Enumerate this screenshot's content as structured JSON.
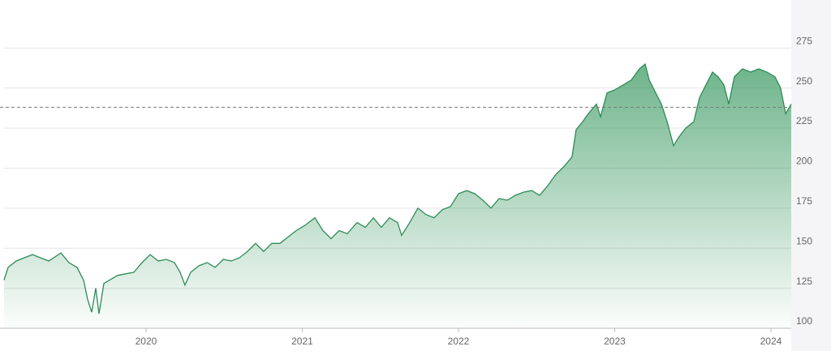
{
  "chart_data": {
    "type": "area",
    "x": [
      2019.091,
      2019.117,
      2019.169,
      2019.273,
      2019.325,
      2019.377,
      2019.455,
      2019.506,
      2019.558,
      2019.6,
      2019.626,
      2019.652,
      2019.678,
      2019.699,
      2019.73,
      2019.766,
      2019.818,
      2019.87,
      2019.922,
      2019.974,
      2020.026,
      2020.078,
      2020.13,
      2020.182,
      2020.218,
      2020.249,
      2020.286,
      2020.338,
      2020.39,
      2020.442,
      2020.494,
      2020.545,
      2020.597,
      2020.649,
      2020.701,
      2020.753,
      2020.805,
      2020.857,
      2020.909,
      2020.961,
      2021.013,
      2021.081,
      2021.132,
      2021.184,
      2021.236,
      2021.288,
      2021.351,
      2021.403,
      2021.455,
      2021.506,
      2021.558,
      2021.61,
      2021.636,
      2021.688,
      2021.74,
      2021.792,
      2021.844,
      2021.896,
      2021.948,
      2022.0,
      2022.052,
      2022.104,
      2022.156,
      2022.208,
      2022.26,
      2022.312,
      2022.364,
      2022.416,
      2022.468,
      2022.519,
      2022.571,
      2022.623,
      2022.675,
      2022.727,
      2022.753,
      2022.795,
      2022.831,
      2022.883,
      2022.909,
      2022.951,
      2023.003,
      2023.055,
      2023.106,
      2023.158,
      2023.195,
      2023.221,
      2023.262,
      2023.299,
      2023.335,
      2023.377,
      2023.408,
      2023.455,
      2023.506,
      2023.543,
      2023.584,
      2023.626,
      2023.662,
      2023.699,
      2023.73,
      2023.766,
      2023.818,
      2023.87,
      2023.922,
      2023.974,
      2024.026,
      2024.062,
      2024.094,
      2024.13
    ],
    "values": [
      130,
      138,
      142,
      146,
      144,
      142,
      147,
      141,
      138,
      130,
      118,
      110,
      125,
      109,
      128,
      130,
      133,
      134,
      135,
      141,
      146,
      142,
      143,
      141,
      135,
      127,
      135,
      139,
      141,
      138,
      143,
      142,
      144,
      148,
      153,
      148,
      153,
      153,
      157,
      161,
      164,
      169,
      161,
      156,
      161,
      159,
      166,
      163,
      169,
      163,
      169,
      166,
      158,
      166,
      175,
      171,
      169,
      174,
      176,
      184,
      186,
      184,
      180,
      175,
      181,
      180,
      183,
      185,
      186,
      183,
      189,
      196,
      201,
      207,
      224,
      229,
      234,
      240,
      232,
      247,
      249,
      252,
      255,
      262,
      265,
      255,
      247,
      240,
      229,
      214,
      219,
      225,
      229,
      244,
      252,
      260,
      257,
      252,
      240,
      257,
      262,
      260,
      262,
      260,
      257,
      250,
      234,
      240
    ],
    "color": "#2e8b57",
    "xlim": [
      2019.091,
      2024.13
    ],
    "xticks": [
      2020,
      2021,
      2022,
      2023,
      2024
    ],
    "ylim": [
      100,
      305
    ],
    "yticks": [
      100,
      125,
      150,
      175,
      200,
      225,
      250,
      275
    ],
    "reference_line": 238,
    "grid": true
  }
}
